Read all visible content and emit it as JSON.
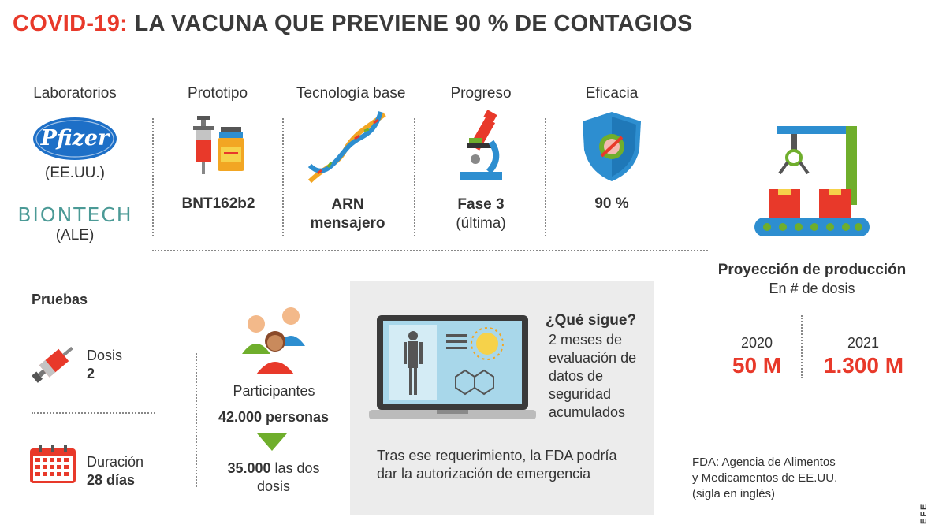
{
  "title": {
    "prefix": "COVID-19:",
    "rest": "LA VACUNA QUE PREVIENE 90 % DE CONTAGIOS"
  },
  "columns": {
    "labs": {
      "heading": "Laboratorios",
      "lab1_logo": "Pfizer",
      "lab1_country": "(EE.UU.)",
      "lab2_logo": "BIONTECH",
      "lab2_country": "(ALE)"
    },
    "prototype": {
      "heading": "Prototipo",
      "value": "BNT162b2"
    },
    "tech": {
      "heading": "Tecnología base",
      "value_line1": "ARN",
      "value_line2": "mensajero"
    },
    "progress": {
      "heading": "Progreso",
      "value_line1": "Fase 3",
      "value_line2": "(última)"
    },
    "efficacy": {
      "heading": "Eficacia",
      "value": "90 %"
    }
  },
  "tests": {
    "heading": "Pruebas",
    "doses_label": "Dosis",
    "doses_value": "2",
    "duration_label": "Duración",
    "duration_value": "28 días",
    "participants_label": "Participantes",
    "participants_value": "42.000 personas",
    "both_doses_bold": "35.000",
    "both_doses_rest1": "las dos",
    "both_doses_rest2": "dosis"
  },
  "next": {
    "heading": "¿Qué sigue?",
    "lines": [
      "2 meses de",
      "evaluación de",
      "datos de",
      "seguridad",
      "acumulados"
    ],
    "fda_line1": "Tras ese requerimiento, la FDA podría",
    "fda_line2": "dar la autorización de emergencia"
  },
  "production": {
    "heading": "Proyección de producción",
    "subheading": "En # de dosis",
    "year1": "2020",
    "value1": "50 M",
    "year2": "2021",
    "value2": "1.300 M"
  },
  "footnote": {
    "line1": "FDA: Agencia de Alimentos",
    "line2": "y Medicamentos de EE.UU.",
    "line3": "(sigla en inglés)"
  },
  "credit": "EFE",
  "colors": {
    "accent": "#e8392a",
    "green": "#6fae2c",
    "blue": "#2d8ed0",
    "teal": "#3d9a8b"
  }
}
